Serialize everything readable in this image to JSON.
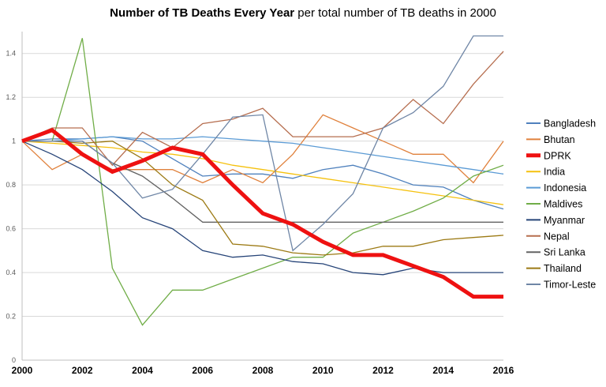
{
  "title_bold": "Number of TB Deaths Every Year",
  "title_rest": "per total number of TB deaths in 2000",
  "chart_data": {
    "type": "line",
    "title": "Number of TB Deaths Every Year per total number of TB deaths in 2000",
    "x": [
      2000,
      2001,
      2002,
      2003,
      2004,
      2005,
      2006,
      2007,
      2008,
      2009,
      2010,
      2011,
      2012,
      2013,
      2014,
      2015,
      2016
    ],
    "xticks": [
      "2000",
      "2002",
      "2004",
      "2006",
      "2008",
      "2010",
      "2012",
      "2014",
      "2016"
    ],
    "yticks": [
      "0",
      "0.2",
      "0.4",
      "0.6",
      "0.8",
      "1",
      "1.2",
      "1.4"
    ],
    "xlim": [
      2000,
      2016
    ],
    "ylim": [
      0,
      1.5
    ],
    "grid": "horizontal",
    "legend": "right",
    "series": [
      {
        "name": "Bangladesh",
        "color": "#4f81bd",
        "width": 1.3,
        "values": [
          1.0,
          1.01,
          1.01,
          1.02,
          1.0,
          0.92,
          0.84,
          0.85,
          0.85,
          0.83,
          0.87,
          0.89,
          0.85,
          0.8,
          0.79,
          0.73,
          0.69
        ]
      },
      {
        "name": "Bhutan",
        "color": "#e0813c",
        "width": 1.3,
        "values": [
          1.0,
          0.87,
          0.94,
          0.87,
          0.87,
          0.87,
          0.81,
          0.87,
          0.81,
          0.94,
          1.12,
          1.06,
          1.0,
          0.94,
          0.94,
          0.81,
          1.0
        ]
      },
      {
        "name": "DPRK",
        "color": "#ee1111",
        "width": 5,
        "values": [
          1.0,
          1.05,
          0.94,
          0.86,
          0.91,
          0.97,
          0.94,
          0.8,
          0.67,
          0.62,
          0.54,
          0.48,
          0.48,
          0.43,
          0.38,
          0.29,
          0.29
        ]
      },
      {
        "name": "India",
        "color": "#f5c10e",
        "width": 1.3,
        "values": [
          1.0,
          0.99,
          0.98,
          0.97,
          0.95,
          0.94,
          0.92,
          0.89,
          0.87,
          0.85,
          0.83,
          0.81,
          0.79,
          0.77,
          0.75,
          0.73,
          0.71
        ]
      },
      {
        "name": "Indonesia",
        "color": "#5b9bd5",
        "width": 1.3,
        "values": [
          1.0,
          1.0,
          1.01,
          1.02,
          1.01,
          1.01,
          1.02,
          1.01,
          1.0,
          0.99,
          0.97,
          0.95,
          0.93,
          0.91,
          0.89,
          0.87,
          0.85
        ]
      },
      {
        "name": "Maldives",
        "color": "#70ad47",
        "width": 1.3,
        "values": [
          1.0,
          1.0,
          1.47,
          0.42,
          0.16,
          0.32,
          0.32,
          0.37,
          0.42,
          0.47,
          0.47,
          0.58,
          0.63,
          0.68,
          0.74,
          0.84,
          0.89
        ]
      },
      {
        "name": "Myanmar",
        "color": "#264478",
        "width": 1.3,
        "values": [
          1.0,
          0.94,
          0.87,
          0.77,
          0.65,
          0.6,
          0.5,
          0.47,
          0.48,
          0.45,
          0.44,
          0.4,
          0.39,
          0.42,
          0.4,
          0.4,
          0.4
        ]
      },
      {
        "name": "Nepal",
        "color": "#b66e4f",
        "width": 1.3,
        "values": [
          1.0,
          1.06,
          1.06,
          0.89,
          1.04,
          0.97,
          1.08,
          1.1,
          1.15,
          1.02,
          1.02,
          1.02,
          1.06,
          1.19,
          1.08,
          1.26,
          1.41
        ]
      },
      {
        "name": "Sri Lanka",
        "color": "#636363",
        "width": 1.3,
        "values": [
          1.0,
          1.0,
          1.0,
          0.9,
          0.84,
          0.74,
          0.63,
          0.63,
          0.63,
          0.63,
          0.63,
          0.63,
          0.63,
          0.63,
          0.63,
          0.63,
          0.63
        ]
      },
      {
        "name": "Thailand",
        "color": "#9c7a14",
        "width": 1.3,
        "values": [
          1.0,
          1.0,
          0.99,
          1.0,
          0.92,
          0.8,
          0.73,
          0.53,
          0.52,
          0.49,
          0.48,
          0.49,
          0.52,
          0.52,
          0.55,
          0.56,
          0.57
        ]
      },
      {
        "name": "Timor-Leste",
        "color": "#6f86a6",
        "width": 1.3,
        "values": [
          1.0,
          1.0,
          1.0,
          0.9,
          0.74,
          0.78,
          0.94,
          1.11,
          1.12,
          0.5,
          0.62,
          0.76,
          1.06,
          1.13,
          1.25,
          1.48,
          1.48
        ]
      }
    ]
  }
}
